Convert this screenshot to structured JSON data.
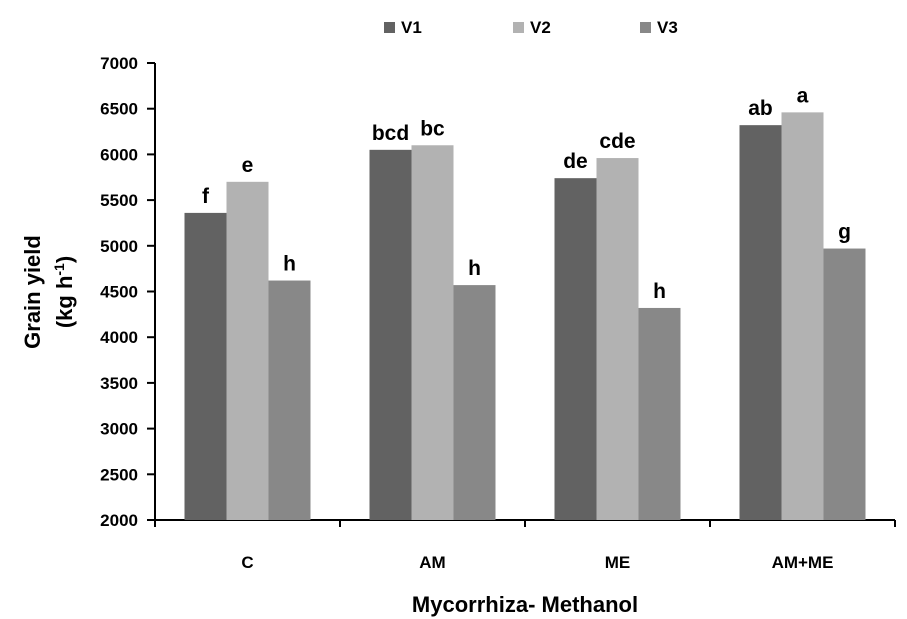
{
  "chart_data": {
    "type": "bar",
    "categories": [
      "C",
      "AM",
      "ME",
      "AM+ME"
    ],
    "series": [
      {
        "name": "V1",
        "color": "#626262",
        "values": [
          5360,
          6050,
          5740,
          6320
        ],
        "labels": [
          "f",
          "bcd",
          "de",
          "ab"
        ]
      },
      {
        "name": "V2",
        "color": "#b2b2b2",
        "values": [
          5700,
          6100,
          5960,
          6460
        ],
        "labels": [
          "e",
          "bc",
          "cde",
          "a"
        ]
      },
      {
        "name": "V3",
        "color": "#888888",
        "values": [
          4620,
          4570,
          4320,
          4970
        ],
        "labels": [
          "h",
          "h",
          "h",
          "g"
        ]
      }
    ],
    "xlabel": "Mycorrhiza- Methanol",
    "ylabel_line1": "Grain yield",
    "ylabel_line2_base": "(kg h",
    "ylabel_line2_sup": "-1",
    "ylabel_line2_end": ")",
    "ylim": [
      2000,
      7000
    ],
    "yticks": [
      2000,
      2500,
      3000,
      3500,
      4000,
      4500,
      5000,
      5500,
      6000,
      6500,
      7000
    ],
    "legend_position": "top",
    "grid": false
  }
}
